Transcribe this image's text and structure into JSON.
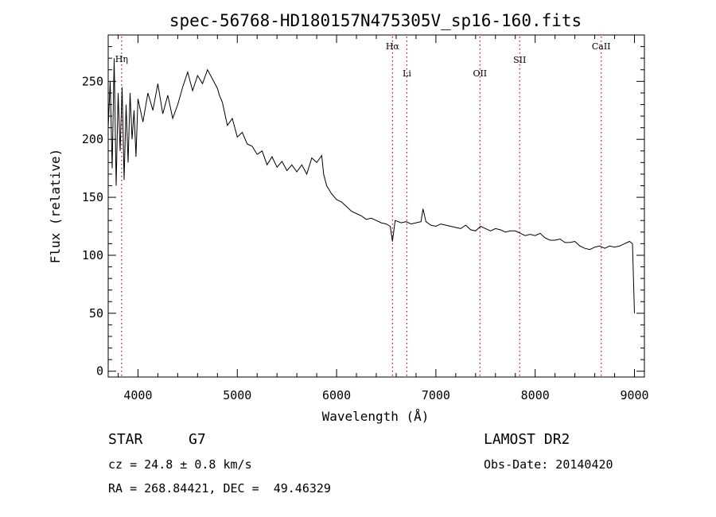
{
  "chart_data": {
    "type": "line",
    "title": "spec-56768-HD180157N475305V_sp16-160.fits",
    "xlabel": "Wavelength (Å)",
    "ylabel": "Flux (relative)",
    "xlim": [
      3700,
      9100
    ],
    "ylim": [
      -5,
      290
    ],
    "xticks": [
      4000,
      5000,
      6000,
      7000,
      8000,
      9000
    ],
    "yticks": [
      0,
      50,
      100,
      150,
      200,
      250
    ],
    "grid": false,
    "legend": "none",
    "line_color": "#000000",
    "marker_color": "#cc0000",
    "spectral_lines": [
      {
        "label": "Hη",
        "wavelength": 3835
      },
      {
        "label": "Hα",
        "wavelength": 6563
      },
      {
        "label": "Li",
        "wavelength": 6708
      },
      {
        "label": "OII",
        "wavelength": 7444
      },
      {
        "label": "SII",
        "wavelength": 7844
      },
      {
        "label": "CaII",
        "wavelength": 8665
      }
    ],
    "series": [
      {
        "x": [
          3700,
          3720,
          3740,
          3760,
          3780,
          3800,
          3820,
          3840,
          3860,
          3880,
          3900,
          3920,
          3940,
          3960,
          3980,
          4000,
          4050,
          4100,
          4150,
          4200,
          4250,
          4300,
          4350,
          4400,
          4450,
          4500,
          4550,
          4600,
          4650,
          4700,
          4750,
          4800,
          4820,
          4850,
          4900,
          4950,
          5000,
          5050,
          5100,
          5150,
          5200,
          5250,
          5300,
          5350,
          5400,
          5450,
          5500,
          5550,
          5600,
          5650,
          5700,
          5750,
          5800,
          5850,
          5870,
          5900,
          5950,
          6000,
          6050,
          6100,
          6150,
          6200,
          6250,
          6300,
          6350,
          6400,
          6450,
          6500,
          6540,
          6563,
          6590,
          6650,
          6700,
          6750,
          6800,
          6850,
          6870,
          6900,
          6950,
          7000,
          7050,
          7100,
          7150,
          7200,
          7250,
          7300,
          7350,
          7400,
          7450,
          7500,
          7550,
          7600,
          7650,
          7700,
          7750,
          7800,
          7850,
          7900,
          7950,
          8000,
          8050,
          8100,
          8150,
          8200,
          8250,
          8300,
          8350,
          8400,
          8450,
          8500,
          8550,
          8600,
          8650,
          8700,
          8750,
          8800,
          8850,
          8900,
          8950,
          8980,
          9000
        ],
        "y": [
          210,
          250,
          175,
          270,
          160,
          240,
          190,
          245,
          165,
          230,
          180,
          240,
          200,
          225,
          185,
          235,
          215,
          240,
          225,
          248,
          222,
          238,
          218,
          230,
          245,
          258,
          242,
          255,
          248,
          260,
          252,
          244,
          238,
          232,
          212,
          218,
          202,
          206,
          196,
          194,
          187,
          190,
          178,
          185,
          176,
          181,
          173,
          178,
          172,
          178,
          170,
          184,
          180,
          186,
          170,
          160,
          153,
          148,
          146,
          142,
          138,
          136,
          134,
          131,
          132,
          130,
          128,
          127,
          125,
          112,
          130,
          128,
          129,
          127,
          128,
          129,
          140,
          129,
          126,
          125,
          127,
          126,
          125,
          124,
          123,
          126,
          122,
          121,
          125,
          123,
          121,
          123,
          122,
          120,
          121,
          121,
          119,
          117,
          118,
          117,
          119,
          115,
          113,
          113,
          114,
          111,
          111,
          112,
          108,
          106,
          105,
          107,
          108,
          106,
          108,
          107,
          108,
          110,
          112,
          110,
          50
        ]
      }
    ]
  },
  "info": {
    "object_type": "STAR",
    "subclass": "G7",
    "cz": "cz = 24.8 ± 0.8 km/s",
    "coords": "RA = 268.84421, DEC =  49.46329",
    "survey": "LAMOST DR2",
    "obs_date": "Obs-Date: 20140420"
  }
}
